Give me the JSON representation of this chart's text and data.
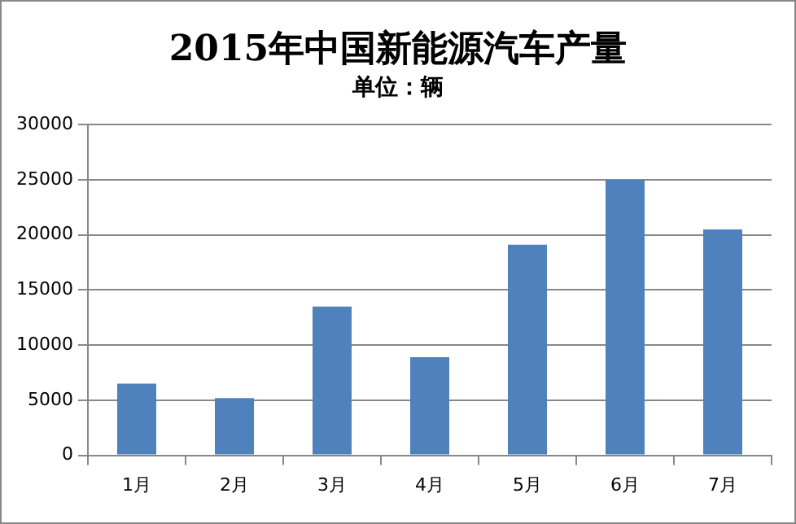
{
  "chart_data": {
    "type": "bar",
    "title": "2015年中国新能源汽车产量",
    "subtitle": "单位：辆",
    "categories": [
      "1月",
      "2月",
      "3月",
      "4月",
      "5月",
      "6月",
      "7月"
    ],
    "values": [
      6500,
      5200,
      13500,
      8900,
      19100,
      25000,
      20500
    ],
    "color": "#4f81bd",
    "ylim": [
      0,
      30000
    ],
    "yticks": [
      0,
      5000,
      10000,
      15000,
      20000,
      25000,
      30000
    ],
    "grid": "y",
    "legend": false
  }
}
